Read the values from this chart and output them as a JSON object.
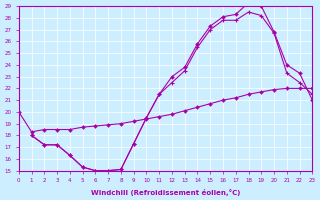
{
  "xlabel": "Windchill (Refroidissement éolien,°C)",
  "bg_color": "#cceeff",
  "line_color": "#aa00aa",
  "grid_color": "#ffffff",
  "xlim": [
    0,
    23
  ],
  "ylim": [
    15,
    29
  ],
  "xticks": [
    0,
    1,
    2,
    3,
    4,
    5,
    6,
    7,
    8,
    9,
    10,
    11,
    12,
    13,
    14,
    15,
    16,
    17,
    18,
    19,
    20,
    21,
    22,
    23
  ],
  "yticks": [
    15,
    16,
    17,
    18,
    19,
    20,
    21,
    22,
    23,
    24,
    25,
    26,
    27,
    28,
    29
  ],
  "line1_x": [
    0,
    1,
    2,
    3,
    4,
    5,
    6,
    7,
    8,
    9,
    10,
    11,
    12,
    13,
    14,
    15,
    16,
    17,
    18,
    19,
    20,
    21,
    22,
    23
  ],
  "line1_y": [
    20.0,
    18.3,
    18.5,
    18.5,
    18.5,
    18.7,
    18.8,
    18.9,
    19.0,
    19.2,
    19.4,
    19.6,
    19.8,
    20.1,
    20.4,
    20.7,
    21.0,
    21.2,
    21.5,
    21.7,
    21.9,
    22.0,
    22.0,
    22.0
  ],
  "line2_x": [
    1,
    2,
    3,
    4,
    5,
    6,
    7,
    8,
    9,
    10,
    11,
    12,
    13,
    14,
    15,
    16,
    17,
    18,
    19,
    20,
    21,
    22,
    23
  ],
  "line2_y": [
    18.0,
    17.2,
    17.2,
    16.3,
    15.3,
    15.0,
    15.0,
    15.1,
    17.3,
    19.5,
    21.5,
    23.0,
    23.8,
    25.8,
    27.3,
    28.1,
    28.3,
    29.3,
    29.0,
    26.8,
    24.0,
    23.3,
    21.0
  ],
  "line3_x": [
    1,
    2,
    3,
    4,
    5,
    6,
    7,
    8,
    9,
    10,
    11,
    12,
    13,
    14,
    15,
    16,
    17,
    18,
    19,
    20,
    21,
    22,
    23
  ],
  "line3_y": [
    18.0,
    17.2,
    17.2,
    16.3,
    15.3,
    15.0,
    15.0,
    15.1,
    17.3,
    19.5,
    21.5,
    22.5,
    23.5,
    25.5,
    27.0,
    27.8,
    27.8,
    28.5,
    28.2,
    26.7,
    23.3,
    22.5,
    21.5
  ]
}
